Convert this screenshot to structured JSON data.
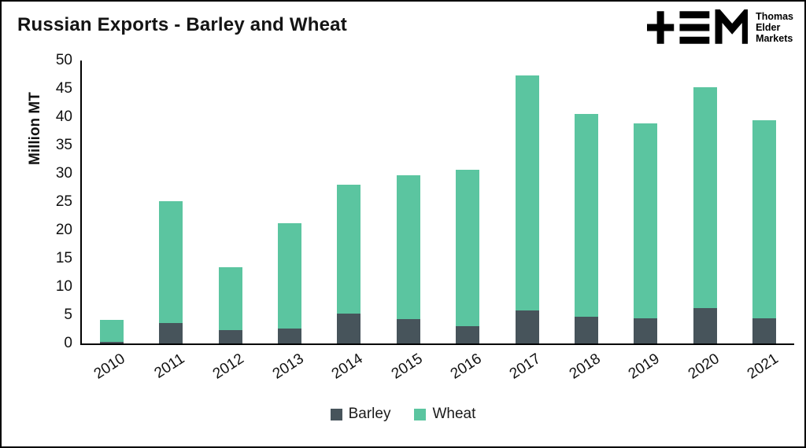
{
  "title": "Russian Exports - Barley and Wheat",
  "logo": {
    "lines": [
      "Thomas",
      "Elder",
      "Markets"
    ]
  },
  "chart_data": {
    "type": "bar",
    "stacked": true,
    "title": "Russian Exports - Barley and Wheat",
    "categories": [
      "2010",
      "2011",
      "2012",
      "2013",
      "2014",
      "2015",
      "2016",
      "2017",
      "2018",
      "2019",
      "2020",
      "2021"
    ],
    "series": [
      {
        "name": "Barley",
        "color": "#47545b",
        "values": [
          0.3,
          3.6,
          2.3,
          2.7,
          5.3,
          4.3,
          3.0,
          5.8,
          4.7,
          4.4,
          6.2,
          4.5
        ]
      },
      {
        "name": "Wheat",
        "color": "#5bc5a0",
        "values": [
          3.9,
          21.6,
          11.2,
          18.5,
          22.8,
          25.4,
          27.7,
          41.5,
          35.8,
          34.5,
          39.1,
          34.9
        ]
      }
    ],
    "totals": [
      4.2,
      25.2,
      13.5,
      21.2,
      28.1,
      29.7,
      30.7,
      47.3,
      40.5,
      38.9,
      45.3,
      39.4
    ],
    "ylabel": "Million MT",
    "xlabel": "",
    "ylim": [
      0,
      50
    ],
    "yticks": [
      0,
      5,
      10,
      15,
      20,
      25,
      30,
      35,
      40,
      45,
      50
    ],
    "grid": false,
    "legend_position": "bottom"
  }
}
